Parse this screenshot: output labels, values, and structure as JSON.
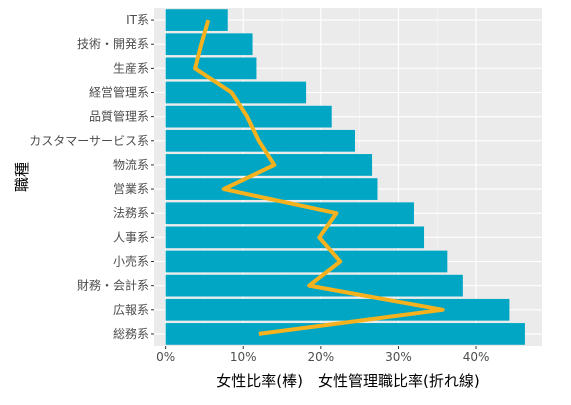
{
  "chart_data": {
    "type": "bar",
    "orientation": "horizontal",
    "ylabel": "職種",
    "xlabel": "女性比率(棒)　女性管理職比率(折れ線)",
    "categories": [
      "IT系",
      "技術・開発系",
      "生産系",
      "経営管理系",
      "品質管理系",
      "カスタマーサービス系",
      "物流系",
      "営業系",
      "法務系",
      "人事系",
      "小売系",
      "財務・会計系",
      "広報系",
      "総務系"
    ],
    "series": [
      {
        "name": "女性比率",
        "type": "bar",
        "color": "#00a6c4",
        "values": [
          8.0,
          11.2,
          11.7,
          18.1,
          21.4,
          24.4,
          26.6,
          27.3,
          32.0,
          33.3,
          36.3,
          38.3,
          44.3,
          46.3
        ]
      },
      {
        "name": "女性管理職比率",
        "type": "line",
        "color": "#f5b21e",
        "values": [
          5.5,
          4.6,
          3.8,
          8.5,
          10.5,
          12.0,
          14.0,
          7.5,
          22.0,
          19.8,
          22.5,
          18.5,
          35.7,
          12.0
        ]
      }
    ],
    "xlim": [
      -1.5,
      48.5
    ],
    "xticks": [
      0,
      10,
      20,
      30,
      40
    ],
    "xtick_labels": [
      "0%",
      "10%",
      "20%",
      "30%",
      "40%"
    ],
    "grid": true,
    "panel_background": "#ebebeb",
    "legend": "none"
  }
}
